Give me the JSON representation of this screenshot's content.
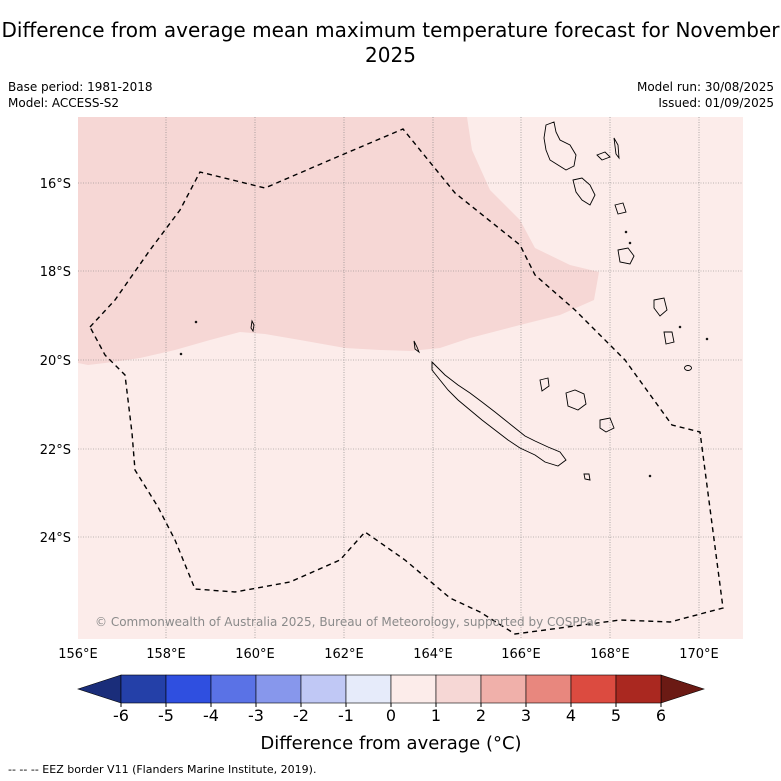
{
  "title": "Difference from average mean maximum temperature forecast for November 2025",
  "meta": {
    "base_period": "Base period: 1981-2018",
    "model": "Model: ACCESS-S2",
    "model_run": "Model run: 30/08/2025",
    "issued": "Issued: 01/09/2025"
  },
  "map": {
    "lat_labels": [
      "16°S",
      "18°S",
      "20°S",
      "22°S",
      "24°S"
    ],
    "lon_labels": [
      "156°E",
      "158°E",
      "160°E",
      "162°E",
      "164°E",
      "166°E",
      "168°E",
      "170°E"
    ],
    "copyright": "© Commonwealth of Australia 2025, Bureau of Meteorology, supported by COSPPac",
    "fill_colors": {
      "band_1_2": "#f6d7d5",
      "band_0_1": "#fcecea"
    }
  },
  "colorbar": {
    "ticks": [
      "-6",
      "-5",
      "-4",
      "-3",
      "-2",
      "-1",
      "0",
      "1",
      "2",
      "3",
      "4",
      "5",
      "6"
    ],
    "colors": [
      "#2440a8",
      "#2f4fe0",
      "#5a72e6",
      "#8797ec",
      "#c0c8f5",
      "#e6ebfa",
      "#fcecea",
      "#f6d7d5",
      "#f0b0aa",
      "#e8877e",
      "#dc4b40",
      "#aa2820"
    ],
    "under_color": "#1a2d7a",
    "over_color": "#6b1a14",
    "title": "Difference from average (°C)"
  },
  "footer": "--  --  -- EEZ border V11 (Flanders Marine Institute, 2019)."
}
